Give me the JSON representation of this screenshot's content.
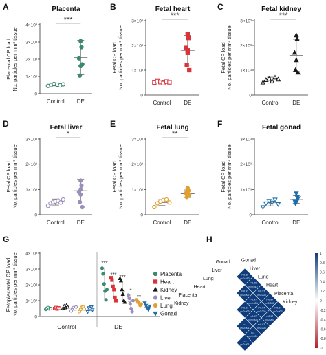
{
  "colors": {
    "placenta": "#3a8a6e",
    "heart": "#d9343a",
    "kidney": "#1a1a1a",
    "liver": "#9a8fb8",
    "lung": "#e0a030",
    "gonad": "#1f6ea8",
    "axis": "#333333",
    "sig_line": "#999999",
    "corr_cell": "#0f3c7a",
    "corr_cell_text": "#ffffff",
    "colorbar_top": "#0f3c7a",
    "colorbar_mid": "#ffffff",
    "colorbar_bottom": "#b21f2b"
  },
  "shared": {
    "ytick_labels": [
      "0",
      "1×10³",
      "2×10³",
      "3×10³",
      "4×10³"
    ],
    "ylabel_load": "No. particles per mm³ tissue"
  },
  "chart_data": [
    {
      "panel": "A",
      "type": "scatter",
      "title": "Placenta",
      "ylabel": "Placental CP load",
      "categories": [
        "Control",
        "DE"
      ],
      "ylim": [
        0,
        4000
      ],
      "yticks": [
        0,
        1000,
        2000,
        3000,
        4000
      ],
      "significance": "***",
      "color_key": "placenta",
      "marker": "circle",
      "series": [
        {
          "category": "Control",
          "points": [
            450,
            500,
            560,
            520,
            480,
            540
          ],
          "mean": 510,
          "sd": 60
        },
        {
          "category": "DE",
          "points": [
            3050,
            2700,
            2050,
            1600,
            1050,
            1700
          ],
          "mean": 2100,
          "sd": 1000
        }
      ]
    },
    {
      "panel": "B",
      "type": "scatter",
      "title": "Fetal heart",
      "ylabel": "Fetal CP load",
      "categories": [
        "Control",
        "DE"
      ],
      "ylim": [
        0,
        3000
      ],
      "yticks": [
        0,
        1000,
        2000,
        3000
      ],
      "significance": "***",
      "color_key": "heart",
      "marker": "square",
      "series": [
        {
          "category": "Control",
          "points": [
            500,
            560,
            520,
            480,
            540,
            510
          ],
          "mean": 520,
          "sd": 60
        },
        {
          "category": "DE",
          "points": [
            2450,
            2300,
            1900,
            1700,
            1200,
            1000,
            1800
          ],
          "mean": 1800,
          "sd": 600
        }
      ]
    },
    {
      "panel": "C",
      "type": "scatter",
      "title": "Fetal kidney",
      "ylabel": "Fetal CP load",
      "categories": [
        "Control",
        "DE"
      ],
      "ylim": [
        0,
        3000
      ],
      "yticks": [
        0,
        1000,
        2000,
        3000
      ],
      "significance": "***",
      "color_key": "kidney",
      "marker": "triangle",
      "series": [
        {
          "category": "Control",
          "points": [
            500,
            600,
            650,
            550,
            700,
            620
          ],
          "mean": 600,
          "sd": 120
        },
        {
          "category": "DE",
          "points": [
            2400,
            2250,
            1700,
            1400,
            1000,
            900
          ],
          "mean": 1600,
          "sd": 650
        }
      ]
    },
    {
      "panel": "D",
      "type": "scatter",
      "title": "Fetal liver",
      "ylabel": "Fetal CP load",
      "categories": [
        "Control",
        "DE"
      ],
      "ylim": [
        0,
        3000
      ],
      "yticks": [
        0,
        1000,
        2000,
        3000
      ],
      "significance": "*",
      "color_key": "liver",
      "marker": "circle",
      "series": [
        {
          "category": "Control",
          "points": [
            350,
            450,
            500,
            520,
            560,
            480,
            600
          ],
          "mean": 500,
          "sd": 120
        },
        {
          "category": "DE",
          "points": [
            1350,
            1150,
            900,
            800,
            500,
            300,
            1000
          ],
          "mean": 950,
          "sd": 450
        }
      ]
    },
    {
      "panel": "E",
      "type": "scatter",
      "title": "Fetal lung",
      "ylabel": "Fetal CP load",
      "categories": [
        "Control",
        "DE"
      ],
      "ylim": [
        0,
        3000
      ],
      "yticks": [
        0,
        1000,
        2000,
        3000
      ],
      "significance": "**",
      "color_key": "lung",
      "marker": "circle",
      "series": [
        {
          "category": "Control",
          "points": [
            300,
            450,
            520,
            580,
            600,
            480
          ],
          "mean": 480,
          "sd": 120
        },
        {
          "category": "DE",
          "points": [
            1050,
            950,
            850,
            800,
            700,
            780
          ],
          "mean": 830,
          "sd": 150
        }
      ]
    },
    {
      "panel": "F",
      "type": "scatter",
      "title": "Fetal gonad",
      "ylabel": "Fetal CP load",
      "categories": [
        "Control",
        "DE"
      ],
      "ylim": [
        0,
        3000
      ],
      "yticks": [
        0,
        1000,
        2000,
        3000
      ],
      "significance": "",
      "color_key": "gonad",
      "marker": "triangle-down",
      "series": [
        {
          "category": "Control",
          "points": [
            300,
            450,
            550,
            480,
            600,
            420
          ],
          "mean": 470,
          "sd": 120
        },
        {
          "category": "DE",
          "points": [
            850,
            700,
            550,
            500,
            450,
            650
          ],
          "mean": 600,
          "sd": 150
        }
      ]
    },
    {
      "panel": "G",
      "type": "scatter",
      "ylabel": "Fetoplacental CP load",
      "categories": [
        "Control",
        "DE"
      ],
      "ylim": [
        0,
        4000
      ],
      "yticks": [
        0,
        1000,
        2000,
        3000,
        4000
      ],
      "series": [
        {
          "name": "Placenta",
          "color_key": "placenta",
          "marker": "circle",
          "control": {
            "points": [
              450,
              520,
              560,
              480,
              500
            ],
            "mean": 510,
            "sd": 60
          },
          "de": {
            "points": [
              3050,
              2700,
              2050,
              1600,
              1050,
              1700
            ],
            "mean": 2100,
            "sd": 1000,
            "significance": "***"
          }
        },
        {
          "name": "Heart",
          "color_key": "heart",
          "marker": "square",
          "control": {
            "points": [
              500,
              560,
              480,
              540,
              520
            ],
            "mean": 520,
            "sd": 60
          },
          "de": {
            "points": [
              2450,
              2300,
              1900,
              1700,
              1200,
              1000
            ],
            "mean": 1800,
            "sd": 600,
            "significance": "***"
          }
        },
        {
          "name": "Kidney",
          "color_key": "kidney",
          "marker": "triangle",
          "control": {
            "points": [
              500,
              650,
              550,
              700,
              600
            ],
            "mean": 600,
            "sd": 120
          },
          "de": {
            "points": [
              2400,
              2250,
              1700,
              1400,
              1000,
              900
            ],
            "mean": 1600,
            "sd": 650,
            "significance": "***"
          }
        },
        {
          "name": "Liver",
          "color_key": "liver",
          "marker": "circle",
          "control": {
            "points": [
              350,
              500,
              560,
              480,
              600
            ],
            "mean": 500,
            "sd": 120
          },
          "de": {
            "points": [
              1350,
              1150,
              800,
              500,
              300,
              1000
            ],
            "mean": 950,
            "sd": 450,
            "significance": "*"
          }
        },
        {
          "name": "Lung",
          "color_key": "lung",
          "marker": "circle",
          "control": {
            "points": [
              300,
              450,
              580,
              600,
              480
            ],
            "mean": 480,
            "sd": 120
          },
          "de": {
            "points": [
              1050,
              950,
              850,
              700,
              780
            ],
            "mean": 830,
            "sd": 150,
            "significance": "**"
          }
        },
        {
          "name": "Gonad",
          "color_key": "gonad",
          "marker": "triangle-down",
          "control": {
            "points": [
              300,
              550,
              480,
              600,
              420
            ],
            "mean": 470,
            "sd": 120
          },
          "de": {
            "points": [
              850,
              700,
              550,
              450,
              650
            ],
            "mean": 600,
            "sd": 150,
            "significance": ""
          }
        }
      ]
    },
    {
      "panel": "H",
      "type": "heatmap",
      "labels": [
        "Gonad",
        "Liver",
        "Lung",
        "Heart",
        "Placenta",
        "Kidney"
      ],
      "cells": [
        {
          "row": 0,
          "col": 1,
          "r": "r=0.89",
          "p": "p=0.012"
        },
        {
          "row": 0,
          "col": 2,
          "r": "r=0.90",
          "p": "p=0.012"
        },
        {
          "row": 0,
          "col": 3,
          "r": "r=0.97",
          "p": "p=0.003"
        },
        {
          "row": 0,
          "col": 4,
          "r": "r=0.97",
          "p": "p=0.003"
        },
        {
          "row": 0,
          "col": 5,
          "r": "r=0.97",
          "p": "p=0.003"
        },
        {
          "row": 1,
          "col": 2,
          "r": "r=0.93",
          "p": "p=0.007"
        },
        {
          "row": 1,
          "col": 3,
          "r": "r=0.97",
          "p": "p=0.003"
        },
        {
          "row": 1,
          "col": 4,
          "r": "r=0.97",
          "p": "p=0.003"
        },
        {
          "row": 1,
          "col": 5,
          "r": "r=0.97",
          "p": "p=0.003"
        },
        {
          "row": 2,
          "col": 3,
          "r": "r=0.97",
          "p": "p=0.003"
        },
        {
          "row": 2,
          "col": 4,
          "r": "r=0.97",
          "p": "p=0.003"
        },
        {
          "row": 2,
          "col": 5,
          "r": "r=0.97",
          "p": "p=0.003"
        },
        {
          "row": 3,
          "col": 4,
          "r": "r=1",
          "p": "p<0.001"
        },
        {
          "row": 3,
          "col": 5,
          "r": "r=1",
          "p": "p<0.001"
        },
        {
          "row": 4,
          "col": 5,
          "r": "r=1",
          "p": "p<0.001"
        }
      ],
      "colorbar_ticks": [
        "1",
        "0.8",
        "0.6",
        "0.4",
        "0.2",
        "0",
        "-0.2",
        "-0.4",
        "-0.6",
        "-0.8",
        "-1"
      ]
    }
  ]
}
